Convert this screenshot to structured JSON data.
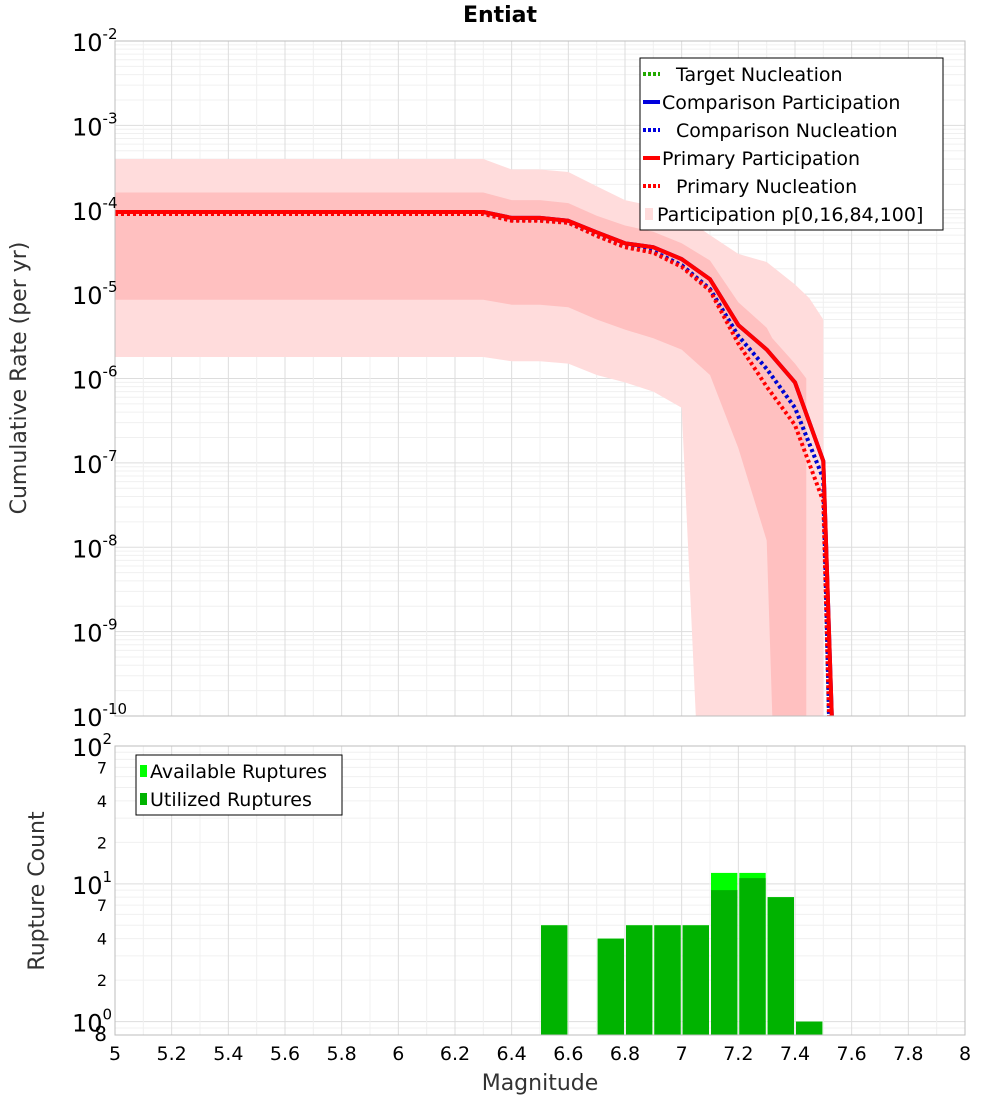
{
  "colors": {
    "target_nucleation": "#22aa00",
    "comparison": "#0000dd",
    "primary": "#ff0000",
    "band_outer": "#ffdcdc",
    "band_inner": "#ffc0c0",
    "available": "#00ff00",
    "utilized": "#00b300"
  },
  "chart_data": [
    {
      "type": "line",
      "title": "Entiat",
      "xlabel": "",
      "ylabel": "Cumulative Rate (per yr)",
      "yscale": "log",
      "xlim": [
        5,
        8
      ],
      "ylim": [
        1e-10,
        0.01
      ],
      "y_tick_exponents": [
        "-2",
        "-3",
        "-4",
        "-5",
        "-6",
        "-7",
        "-8",
        "-9",
        "-10"
      ],
      "grid": true,
      "legend_position": "top-right",
      "legend": [
        {
          "label": "Target Nucleation",
          "style": "dotted",
          "color": "green"
        },
        {
          "label": "Comparison Participation",
          "style": "solid",
          "color": "blue"
        },
        {
          "label": "Comparison Nucleation",
          "style": "dotted",
          "color": "blue"
        },
        {
          "label": "Primary Participation",
          "style": "solid",
          "color": "red"
        },
        {
          "label": "Primary Nucleation",
          "style": "dotted",
          "color": "red"
        },
        {
          "label": "Participation p[0,16,84,100]",
          "style": "band",
          "color": "pink"
        }
      ],
      "series": [
        {
          "name": "Target Nucleation",
          "style": "dotted",
          "x": [
            5.0,
            6.3,
            6.4,
            6.5,
            6.6,
            6.7,
            6.8,
            6.9,
            7.0,
            7.1,
            7.2,
            7.3,
            7.4,
            7.5,
            7.52
          ],
          "y": [
            9.1e-05,
            9.1e-05,
            7.6e-05,
            7.6e-05,
            7.1e-05,
            5e-05,
            3.7e-05,
            3.2e-05,
            2.2e-05,
            1.15e-05,
            3.2e-06,
            1.3e-06,
            4.5e-07,
            6.5e-08,
            1e-10
          ]
        },
        {
          "name": "Comparison Participation",
          "style": "solid",
          "x": [
            5.0,
            6.3,
            6.4,
            6.5,
            6.6,
            6.7,
            6.8,
            6.9,
            7.0,
            7.1,
            7.2,
            7.3,
            7.4,
            7.5,
            7.53
          ],
          "y": [
            9.4e-05,
            9.4e-05,
            8e-05,
            8e-05,
            7.4e-05,
            5.4e-05,
            4e-05,
            3.6e-05,
            2.6e-05,
            1.5e-05,
            4.3e-06,
            2.2e-06,
            9e-07,
            1.05e-07,
            1e-10
          ]
        },
        {
          "name": "Comparison Nucleation",
          "style": "dotted",
          "x": [
            5.0,
            6.3,
            6.4,
            6.5,
            6.6,
            6.7,
            6.8,
            6.9,
            7.0,
            7.1,
            7.2,
            7.3,
            7.4,
            7.5,
            7.52
          ],
          "y": [
            9.1e-05,
            9.1e-05,
            7.6e-05,
            7.6e-05,
            7.1e-05,
            5e-05,
            3.7e-05,
            3.2e-05,
            2.2e-05,
            1.15e-05,
            3.2e-06,
            1.3e-06,
            4.5e-07,
            6.5e-08,
            1e-10
          ]
        },
        {
          "name": "Primary Participation",
          "style": "solid",
          "x": [
            5.0,
            6.3,
            6.4,
            6.5,
            6.6,
            6.7,
            6.8,
            6.9,
            7.0,
            7.1,
            7.2,
            7.3,
            7.4,
            7.5,
            7.53
          ],
          "y": [
            9.4e-05,
            9.4e-05,
            8e-05,
            8e-05,
            7.4e-05,
            5.4e-05,
            4e-05,
            3.6e-05,
            2.6e-05,
            1.5e-05,
            4.3e-06,
            2.2e-06,
            9e-07,
            1.05e-07,
            1e-10
          ]
        },
        {
          "name": "Primary Nucleation",
          "style": "dotted",
          "x": [
            5.0,
            6.3,
            6.4,
            6.5,
            6.6,
            6.7,
            6.8,
            6.9,
            7.0,
            7.1,
            7.2,
            7.3,
            7.4,
            7.5,
            7.52
          ],
          "y": [
            8.9e-05,
            8.9e-05,
            7.4e-05,
            7.4e-05,
            7e-05,
            4.9e-05,
            3.6e-05,
            3.1e-05,
            2.1e-05,
            1.1e-05,
            2.6e-06,
            8e-07,
            2.8e-07,
            3.5e-08,
            1e-10
          ]
        }
      ],
      "bands": [
        {
          "name": "p0-p100",
          "x": [
            5.0,
            6.3,
            6.4,
            6.5,
            6.6,
            6.7,
            6.8,
            6.9,
            7.0,
            7.05,
            7.1,
            7.2,
            7.3,
            7.4,
            7.45,
            7.5
          ],
          "lower": [
            1.8e-06,
            1.8e-06,
            1.6e-06,
            1.6e-06,
            1.5e-06,
            1.1e-06,
            9e-07,
            7e-07,
            4.5e-07,
            1e-10,
            1e-10,
            1e-10,
            1e-10,
            1e-10,
            1e-10,
            1e-10
          ],
          "upper": [
            0.0004,
            0.0004,
            0.0003,
            0.0003,
            0.00028,
            0.00019,
            0.00013,
            0.00011,
            8e-05,
            6.5e-05,
            5e-05,
            3e-05,
            2.4e-05,
            1.3e-05,
            9e-06,
            5e-06
          ]
        },
        {
          "name": "p16-p84",
          "x": [
            5.0,
            6.3,
            6.4,
            6.5,
            6.6,
            6.7,
            6.8,
            6.9,
            7.0,
            7.1,
            7.2,
            7.3,
            7.32,
            7.4,
            7.44
          ],
          "lower": [
            8.6e-06,
            8.6e-06,
            7.5e-06,
            7.5e-06,
            7e-06,
            5e-06,
            3.8e-06,
            3e-06,
            2.2e-06,
            1.1e-06,
            1.5e-07,
            1.2e-08,
            1e-10,
            1e-10,
            1e-10
          ],
          "upper": [
            0.00016,
            0.00016,
            0.00013,
            0.00013,
            0.00012,
            8.5e-05,
            6.5e-05,
            5.5e-05,
            4e-05,
            2.5e-05,
            8e-06,
            4e-06,
            3e-06,
            1.5e-06,
            1e-06
          ]
        }
      ]
    },
    {
      "type": "bar",
      "xlabel": "Magnitude",
      "ylabel": "Rupture Count",
      "yscale": "log",
      "xlim": [
        5,
        8
      ],
      "ylim": [
        0.8,
        100
      ],
      "x_ticks": [
        "5",
        "5.2",
        "5.4",
        "5.6",
        "5.8",
        "6",
        "6.2",
        "6.4",
        "6.6",
        "6.8",
        "7",
        "7.2",
        "7.4",
        "7.6",
        "7.8",
        "8"
      ],
      "y_major": [
        {
          "value": 100,
          "base": "10",
          "exp": "2"
        },
        {
          "value": 10,
          "base": "10",
          "exp": "1"
        },
        {
          "value": 1,
          "base": "10",
          "exp": "0"
        }
      ],
      "y_minor": [
        {
          "value": 70,
          "label": "7"
        },
        {
          "value": 40,
          "label": "4"
        },
        {
          "value": 20,
          "label": "2"
        },
        {
          "value": 7,
          "label": "7"
        },
        {
          "value": 4,
          "label": "4"
        },
        {
          "value": 2,
          "label": "2"
        },
        {
          "value": 0.8,
          "label": "8"
        }
      ],
      "grid": true,
      "legend_position": "top-left",
      "legend": [
        {
          "label": "Available Ruptures",
          "color": "bright-green"
        },
        {
          "label": "Utilized Ruptures",
          "color": "green"
        }
      ],
      "bin_width": 0.1,
      "x": [
        6.55,
        6.75,
        6.85,
        6.95,
        7.05,
        7.15,
        7.25,
        7.35,
        7.45
      ],
      "series": [
        {
          "name": "Available Ruptures",
          "values": [
            5,
            4,
            5,
            5,
            5,
            12,
            12,
            8,
            1
          ]
        },
        {
          "name": "Utilized Ruptures",
          "values": [
            5,
            4,
            5,
            5,
            5,
            9,
            11,
            8,
            1
          ]
        }
      ]
    }
  ]
}
